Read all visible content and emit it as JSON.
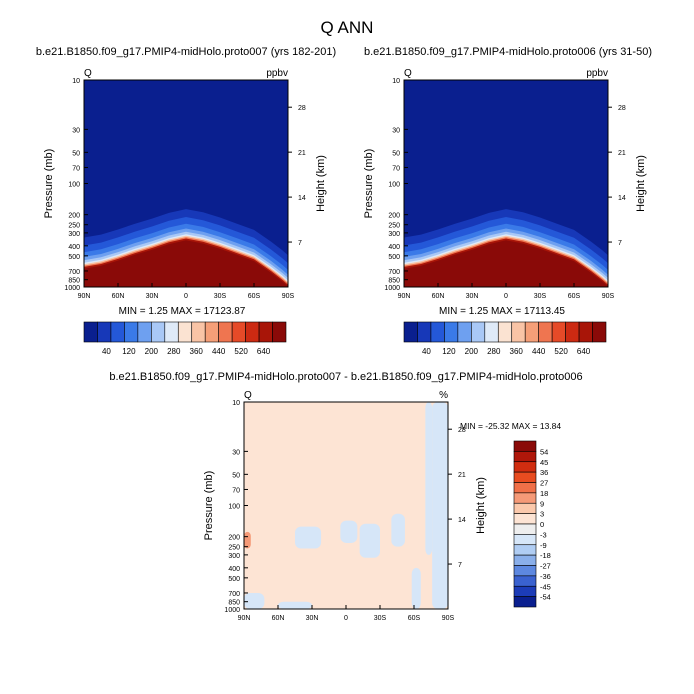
{
  "figure_title": "Q ANN",
  "chart_data": [
    {
      "type": "heatmap",
      "title": "b.e21.B1850.f09_g17.PMIP4-midHolo.proto007 (yrs 182-201)",
      "left_label": "Q",
      "right_label": "ppbv",
      "ylabel": "Pressure (mb)",
      "y2label": "Height (km)",
      "x_ticks": [
        "90N",
        "60N",
        "30N",
        "0",
        "30S",
        "60S",
        "90S"
      ],
      "y_ticks": [
        "10",
        "30",
        "50",
        "70",
        "100",
        "200",
        "250",
        "300",
        "400",
        "500",
        "700",
        "850",
        "1000"
      ],
      "y2_ticks": [
        "28",
        "21",
        "14",
        "7"
      ],
      "stats": "MIN =   1.25   MAX = 17123.87",
      "colorbar_labels": [
        "40",
        "120",
        "200",
        "280",
        "360",
        "440",
        "520",
        "640"
      ],
      "colorbar_colors": [
        "#0a1f8f",
        "#1738b8",
        "#2458d8",
        "#3a7ae8",
        "#6ea0f0",
        "#a9c8f6",
        "#dfeaf8",
        "#fbe3d2",
        "#f9c4a6",
        "#f59f78",
        "#ef7550",
        "#e64a28",
        "#cc2a12",
        "#a81508",
        "#8a0a08"
      ],
      "troposphere_profile": [
        [
          -90,
          640
        ],
        [
          -75,
          600
        ],
        [
          -60,
          535
        ],
        [
          -45,
          470
        ],
        [
          -30,
          420
        ],
        [
          -15,
          370
        ],
        [
          0,
          340
        ],
        [
          15,
          365
        ],
        [
          30,
          410
        ],
        [
          45,
          470
        ],
        [
          60,
          540
        ],
        [
          75,
          700
        ],
        [
          85,
          850
        ],
        [
          90,
          950
        ]
      ]
    },
    {
      "type": "heatmap",
      "title": "b.e21.B1850.f09_g17.PMIP4-midHolo.proto006 (yrs 31-50)",
      "left_label": "Q",
      "right_label": "ppbv",
      "ylabel": "Pressure (mb)",
      "y2label": "Height (km)",
      "x_ticks": [
        "90N",
        "60N",
        "30N",
        "0",
        "30S",
        "60S",
        "90S"
      ],
      "y_ticks": [
        "10",
        "30",
        "50",
        "70",
        "100",
        "200",
        "250",
        "300",
        "400",
        "500",
        "700",
        "850",
        "1000"
      ],
      "y2_ticks": [
        "28",
        "21",
        "14",
        "7"
      ],
      "stats": "MIN =   1.25   MAX = 17113.45",
      "colorbar_labels": [
        "40",
        "120",
        "200",
        "280",
        "360",
        "440",
        "520",
        "640"
      ],
      "colorbar_colors": [
        "#0a1f8f",
        "#1738b8",
        "#2458d8",
        "#3a7ae8",
        "#6ea0f0",
        "#a9c8f6",
        "#dfeaf8",
        "#fbe3d2",
        "#f9c4a6",
        "#f59f78",
        "#ef7550",
        "#e64a28",
        "#cc2a12",
        "#a81508",
        "#8a0a08"
      ],
      "troposphere_profile": [
        [
          -90,
          640
        ],
        [
          -75,
          600
        ],
        [
          -60,
          535
        ],
        [
          -45,
          470
        ],
        [
          -30,
          420
        ],
        [
          -15,
          370
        ],
        [
          0,
          340
        ],
        [
          15,
          365
        ],
        [
          30,
          410
        ],
        [
          45,
          470
        ],
        [
          60,
          540
        ],
        [
          75,
          700
        ],
        [
          85,
          850
        ],
        [
          90,
          950
        ]
      ]
    },
    {
      "type": "heatmap",
      "title": "b.e21.B1850.f09_g17.PMIP4-midHolo.proto007 - b.e21.B1850.f09_g17.PMIP4-midHolo.proto006",
      "left_label": "Q",
      "right_label": "%",
      "ylabel": "Pressure (mb)",
      "y2label": "Height (km)",
      "x_ticks": [
        "90N",
        "60N",
        "30N",
        "0",
        "30S",
        "60S",
        "90S"
      ],
      "y_ticks": [
        "10",
        "30",
        "50",
        "70",
        "100",
        "200",
        "250",
        "300",
        "400",
        "500",
        "700",
        "850",
        "1000"
      ],
      "y2_ticks": [
        "28",
        "21",
        "14",
        "7"
      ],
      "stats": "MIN = -25.32   MAX =  13.84",
      "background_color": "#fde4d4",
      "colorbar_labels": [
        "54",
        "45",
        "36",
        "27",
        "18",
        "9",
        "3",
        "0",
        "-3",
        "-9",
        "-18",
        "-27",
        "-36",
        "-45",
        "-54"
      ],
      "colorbar_colors": [
        "#8a0a08",
        "#b0170a",
        "#d12d10",
        "#e84c20",
        "#f07048",
        "#f59a78",
        "#fbc9ac",
        "#fde4d4",
        "#eeeeee",
        "#d6e6f8",
        "#b0cdf3",
        "#8aafea",
        "#5d88e0",
        "#3a62d0",
        "#1c3cb8",
        "#0a1f8f"
      ],
      "negative_regions": [
        {
          "lat": [
            -90,
            -72
          ],
          "p": [
            700,
            1000
          ]
        },
        {
          "lat": [
            -45,
            -22
          ],
          "p": [
            160,
            260
          ]
        },
        {
          "lat": [
            -5,
            10
          ],
          "p": [
            140,
            230
          ]
        },
        {
          "lat": [
            12,
            30
          ],
          "p": [
            150,
            320
          ]
        },
        {
          "lat": [
            40,
            52
          ],
          "p": [
            120,
            250
          ]
        },
        {
          "lat": [
            58,
            66
          ],
          "p": [
            400,
            1000
          ]
        },
        {
          "lat": [
            70,
            76
          ],
          "p": [
            10,
            300
          ]
        },
        {
          "lat": [
            76,
            90
          ],
          "p": [
            10,
            1000
          ]
        },
        {
          "lat": [
            -60,
            -30
          ],
          "p": [
            850,
            1000
          ]
        }
      ],
      "positive_regions": [
        {
          "lat": [
            -90,
            -84
          ],
          "p": [
            180,
            260
          ]
        }
      ]
    }
  ]
}
